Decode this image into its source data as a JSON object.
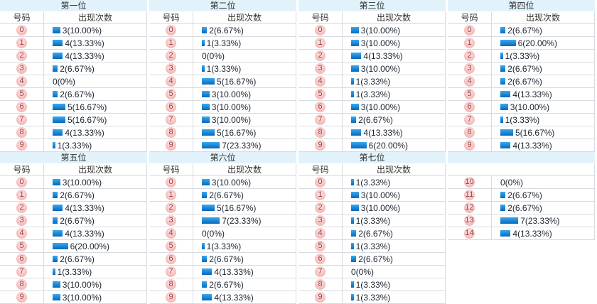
{
  "headers": {
    "number": "号码",
    "count": "出现次数"
  },
  "colors": {
    "title_bg": "#e2f2fb",
    "bar_top": "#41a7e8",
    "bar_bottom": "#0a67be",
    "badge_bg": "#f6b6b6",
    "badge_text": "#8f4141",
    "border": "#d6dbe1"
  },
  "panels": [
    {
      "title": "第一位",
      "show_header": true,
      "rows": [
        {
          "num": "0",
          "count": 3,
          "display": "3(10.00%)"
        },
        {
          "num": "1",
          "count": 4,
          "display": "4(13.33%)"
        },
        {
          "num": "2",
          "count": 4,
          "display": "4(13.33%)"
        },
        {
          "num": "3",
          "count": 2,
          "display": "2(6.67%)"
        },
        {
          "num": "4",
          "count": 0,
          "display": "0(0%)"
        },
        {
          "num": "5",
          "count": 2,
          "display": "2(6.67%)"
        },
        {
          "num": "6",
          "count": 5,
          "display": "5(16.67%)"
        },
        {
          "num": "7",
          "count": 5,
          "display": "5(16.67%)"
        },
        {
          "num": "8",
          "count": 4,
          "display": "4(13.33%)"
        },
        {
          "num": "9",
          "count": 1,
          "display": "1(3.33%)"
        }
      ]
    },
    {
      "title": "第二位",
      "show_header": true,
      "rows": [
        {
          "num": "0",
          "count": 2,
          "display": "2(6.67%)"
        },
        {
          "num": "1",
          "count": 1,
          "display": "1(3.33%)"
        },
        {
          "num": "2",
          "count": 0,
          "display": "0(0%)"
        },
        {
          "num": "3",
          "count": 1,
          "display": "1(3.33%)"
        },
        {
          "num": "4",
          "count": 5,
          "display": "5(16.67%)"
        },
        {
          "num": "5",
          "count": 3,
          "display": "3(10.00%)"
        },
        {
          "num": "6",
          "count": 3,
          "display": "3(10.00%)"
        },
        {
          "num": "7",
          "count": 3,
          "display": "3(10.00%)"
        },
        {
          "num": "8",
          "count": 5,
          "display": "5(16.67%)"
        },
        {
          "num": "9",
          "count": 7,
          "display": "7(23.33%)"
        }
      ]
    },
    {
      "title": "第三位",
      "show_header": true,
      "rows": [
        {
          "num": "0",
          "count": 3,
          "display": "3(10.00%)"
        },
        {
          "num": "1",
          "count": 3,
          "display": "3(10.00%)"
        },
        {
          "num": "2",
          "count": 4,
          "display": "4(13.33%)"
        },
        {
          "num": "3",
          "count": 3,
          "display": "3(10.00%)"
        },
        {
          "num": "4",
          "count": 1,
          "display": "1(3.33%)"
        },
        {
          "num": "5",
          "count": 1,
          "display": "1(3.33%)"
        },
        {
          "num": "6",
          "count": 3,
          "display": "3(10.00%)"
        },
        {
          "num": "7",
          "count": 2,
          "display": "2(6.67%)"
        },
        {
          "num": "8",
          "count": 4,
          "display": "4(13.33%)"
        },
        {
          "num": "9",
          "count": 6,
          "display": "6(20.00%)"
        }
      ]
    },
    {
      "title": "第四位",
      "show_header": true,
      "rows": [
        {
          "num": "0",
          "count": 2,
          "display": "2(6.67%)"
        },
        {
          "num": "1",
          "count": 6,
          "display": "6(20.00%)"
        },
        {
          "num": "2",
          "count": 1,
          "display": "1(3.33%)"
        },
        {
          "num": "3",
          "count": 2,
          "display": "2(6.67%)"
        },
        {
          "num": "4",
          "count": 2,
          "display": "2(6.67%)"
        },
        {
          "num": "5",
          "count": 4,
          "display": "4(13.33%)"
        },
        {
          "num": "6",
          "count": 3,
          "display": "3(10.00%)"
        },
        {
          "num": "7",
          "count": 1,
          "display": "1(3.33%)"
        },
        {
          "num": "8",
          "count": 5,
          "display": "5(16.67%)"
        },
        {
          "num": "9",
          "count": 4,
          "display": "4(13.33%)"
        }
      ]
    },
    {
      "title": "第五位",
      "show_header": true,
      "rows": [
        {
          "num": "0",
          "count": 3,
          "display": "3(10.00%)"
        },
        {
          "num": "1",
          "count": 2,
          "display": "2(6.67%)"
        },
        {
          "num": "2",
          "count": 4,
          "display": "4(13.33%)"
        },
        {
          "num": "3",
          "count": 2,
          "display": "2(6.67%)"
        },
        {
          "num": "4",
          "count": 4,
          "display": "4(13.33%)"
        },
        {
          "num": "5",
          "count": 6,
          "display": "6(20.00%)"
        },
        {
          "num": "6",
          "count": 2,
          "display": "2(6.67%)"
        },
        {
          "num": "7",
          "count": 1,
          "display": "1(3.33%)"
        },
        {
          "num": "8",
          "count": 3,
          "display": "3(10.00%)"
        },
        {
          "num": "9",
          "count": 3,
          "display": "3(10.00%)"
        }
      ]
    },
    {
      "title": "第六位",
      "show_header": true,
      "rows": [
        {
          "num": "0",
          "count": 3,
          "display": "3(10.00%)"
        },
        {
          "num": "1",
          "count": 2,
          "display": "2(6.67%)"
        },
        {
          "num": "2",
          "count": 5,
          "display": "5(16.67%)"
        },
        {
          "num": "3",
          "count": 7,
          "display": "7(23.33%)"
        },
        {
          "num": "4",
          "count": 0,
          "display": "0(0%)"
        },
        {
          "num": "5",
          "count": 1,
          "display": "1(3.33%)"
        },
        {
          "num": "6",
          "count": 2,
          "display": "2(6.67%)"
        },
        {
          "num": "7",
          "count": 4,
          "display": "4(13.33%)"
        },
        {
          "num": "8",
          "count": 2,
          "display": "2(6.67%)"
        },
        {
          "num": "9",
          "count": 4,
          "display": "4(13.33%)"
        }
      ]
    },
    {
      "title": "第七位",
      "show_header": true,
      "rows": [
        {
          "num": "0",
          "count": 1,
          "display": "1(3.33%)"
        },
        {
          "num": "1",
          "count": 3,
          "display": "3(10.00%)"
        },
        {
          "num": "2",
          "count": 3,
          "display": "3(10.00%)"
        },
        {
          "num": "3",
          "count": 1,
          "display": "1(3.33%)"
        },
        {
          "num": "4",
          "count": 2,
          "display": "2(6.67%)"
        },
        {
          "num": "5",
          "count": 1,
          "display": "1(3.33%)"
        },
        {
          "num": "6",
          "count": 2,
          "display": "2(6.67%)"
        },
        {
          "num": "7",
          "count": 0,
          "display": "0(0%)"
        },
        {
          "num": "8",
          "count": 1,
          "display": "1(3.33%)"
        },
        {
          "num": "9",
          "count": 1,
          "display": "1(3.33%)"
        }
      ]
    },
    {
      "title": "",
      "show_header": false,
      "rows": [
        {
          "num": "10",
          "count": 0,
          "display": "0(0%)"
        },
        {
          "num": "11",
          "count": 2,
          "display": "2(6.67%)"
        },
        {
          "num": "12",
          "count": 2,
          "display": "2(6.67%)"
        },
        {
          "num": "13",
          "count": 7,
          "display": "7(23.33%)"
        },
        {
          "num": "14",
          "count": 4,
          "display": "4(13.33%)"
        }
      ]
    }
  ],
  "chart_data": [
    {
      "type": "bar",
      "title": "第一位",
      "xlabel": "号码",
      "ylabel": "出现次数",
      "categories": [
        0,
        1,
        2,
        3,
        4,
        5,
        6,
        7,
        8,
        9
      ],
      "values": [
        3,
        4,
        4,
        2,
        0,
        2,
        5,
        5,
        4,
        1
      ],
      "labels": [
        "3(10.00%)",
        "4(13.33%)",
        "4(13.33%)",
        "2(6.67%)",
        "0(0%)",
        "2(6.67%)",
        "5(16.67%)",
        "5(16.67%)",
        "4(13.33%)",
        "1(3.33%)"
      ]
    },
    {
      "type": "bar",
      "title": "第二位",
      "xlabel": "号码",
      "ylabel": "出现次数",
      "categories": [
        0,
        1,
        2,
        3,
        4,
        5,
        6,
        7,
        8,
        9
      ],
      "values": [
        2,
        1,
        0,
        1,
        5,
        3,
        3,
        3,
        5,
        7
      ],
      "labels": [
        "2(6.67%)",
        "1(3.33%)",
        "0(0%)",
        "1(3.33%)",
        "5(16.67%)",
        "3(10.00%)",
        "3(10.00%)",
        "3(10.00%)",
        "5(16.67%)",
        "7(23.33%)"
      ]
    },
    {
      "type": "bar",
      "title": "第三位",
      "xlabel": "号码",
      "ylabel": "出现次数",
      "categories": [
        0,
        1,
        2,
        3,
        4,
        5,
        6,
        7,
        8,
        9
      ],
      "values": [
        3,
        3,
        4,
        3,
        1,
        1,
        3,
        2,
        4,
        6
      ],
      "labels": [
        "3(10.00%)",
        "3(10.00%)",
        "4(13.33%)",
        "3(10.00%)",
        "1(3.33%)",
        "1(3.33%)",
        "3(10.00%)",
        "2(6.67%)",
        "4(13.33%)",
        "6(20.00%)"
      ]
    },
    {
      "type": "bar",
      "title": "第四位",
      "xlabel": "号码",
      "ylabel": "出现次数",
      "categories": [
        0,
        1,
        2,
        3,
        4,
        5,
        6,
        7,
        8,
        9
      ],
      "values": [
        2,
        6,
        1,
        2,
        2,
        4,
        3,
        1,
        5,
        4
      ],
      "labels": [
        "2(6.67%)",
        "6(20.00%)",
        "1(3.33%)",
        "2(6.67%)",
        "2(6.67%)",
        "4(13.33%)",
        "3(10.00%)",
        "1(3.33%)",
        "5(16.67%)",
        "4(13.33%)"
      ]
    },
    {
      "type": "bar",
      "title": "第五位",
      "xlabel": "号码",
      "ylabel": "出现次数",
      "categories": [
        0,
        1,
        2,
        3,
        4,
        5,
        6,
        7,
        8,
        9
      ],
      "values": [
        3,
        2,
        4,
        2,
        4,
        6,
        2,
        1,
        3,
        3
      ],
      "labels": [
        "3(10.00%)",
        "2(6.67%)",
        "4(13.33%)",
        "2(6.67%)",
        "4(13.33%)",
        "6(20.00%)",
        "2(6.67%)",
        "1(3.33%)",
        "3(10.00%)",
        "3(10.00%)"
      ]
    },
    {
      "type": "bar",
      "title": "第六位",
      "xlabel": "号码",
      "ylabel": "出现次数",
      "categories": [
        0,
        1,
        2,
        3,
        4,
        5,
        6,
        7,
        8,
        9
      ],
      "values": [
        3,
        2,
        5,
        7,
        0,
        1,
        2,
        4,
        2,
        4
      ],
      "labels": [
        "3(10.00%)",
        "2(6.67%)",
        "5(16.67%)",
        "7(23.33%)",
        "0(0%)",
        "1(3.33%)",
        "2(6.67%)",
        "4(13.33%)",
        "2(6.67%)",
        "4(13.33%)"
      ]
    },
    {
      "type": "bar",
      "title": "第七位",
      "xlabel": "号码",
      "ylabel": "出现次数",
      "categories": [
        0,
        1,
        2,
        3,
        4,
        5,
        6,
        7,
        8,
        9,
        10,
        11,
        12,
        13,
        14
      ],
      "values": [
        1,
        3,
        3,
        1,
        2,
        1,
        2,
        0,
        1,
        1,
        0,
        2,
        2,
        7,
        4
      ],
      "labels": [
        "1(3.33%)",
        "3(10.00%)",
        "3(10.00%)",
        "1(3.33%)",
        "2(6.67%)",
        "1(3.33%)",
        "2(6.67%)",
        "0(0%)",
        "1(3.33%)",
        "1(3.33%)",
        "0(0%)",
        "2(6.67%)",
        "2(6.67%)",
        "7(23.33%)",
        "4(13.33%)"
      ]
    }
  ]
}
